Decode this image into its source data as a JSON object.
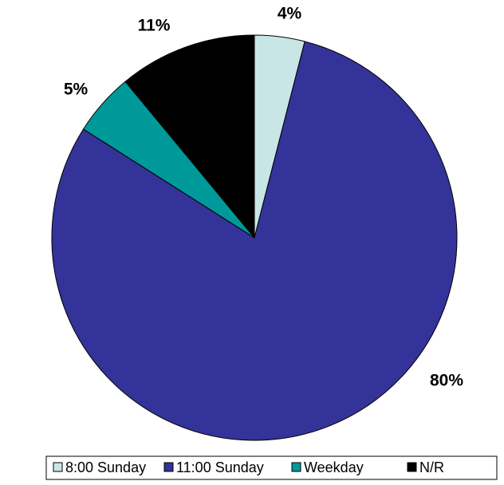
{
  "chart_data": {
    "type": "pie",
    "categories": [
      "8:00 Sunday",
      "11:00 Sunday",
      "Weekday",
      "N/R"
    ],
    "values": [
      4,
      80,
      5,
      11
    ],
    "value_labels": [
      "4%",
      "80%",
      "5%",
      "11%"
    ],
    "colors": [
      "#c8e6e6",
      "#333399",
      "#009999",
      "#000000"
    ],
    "legend": "bottom"
  }
}
